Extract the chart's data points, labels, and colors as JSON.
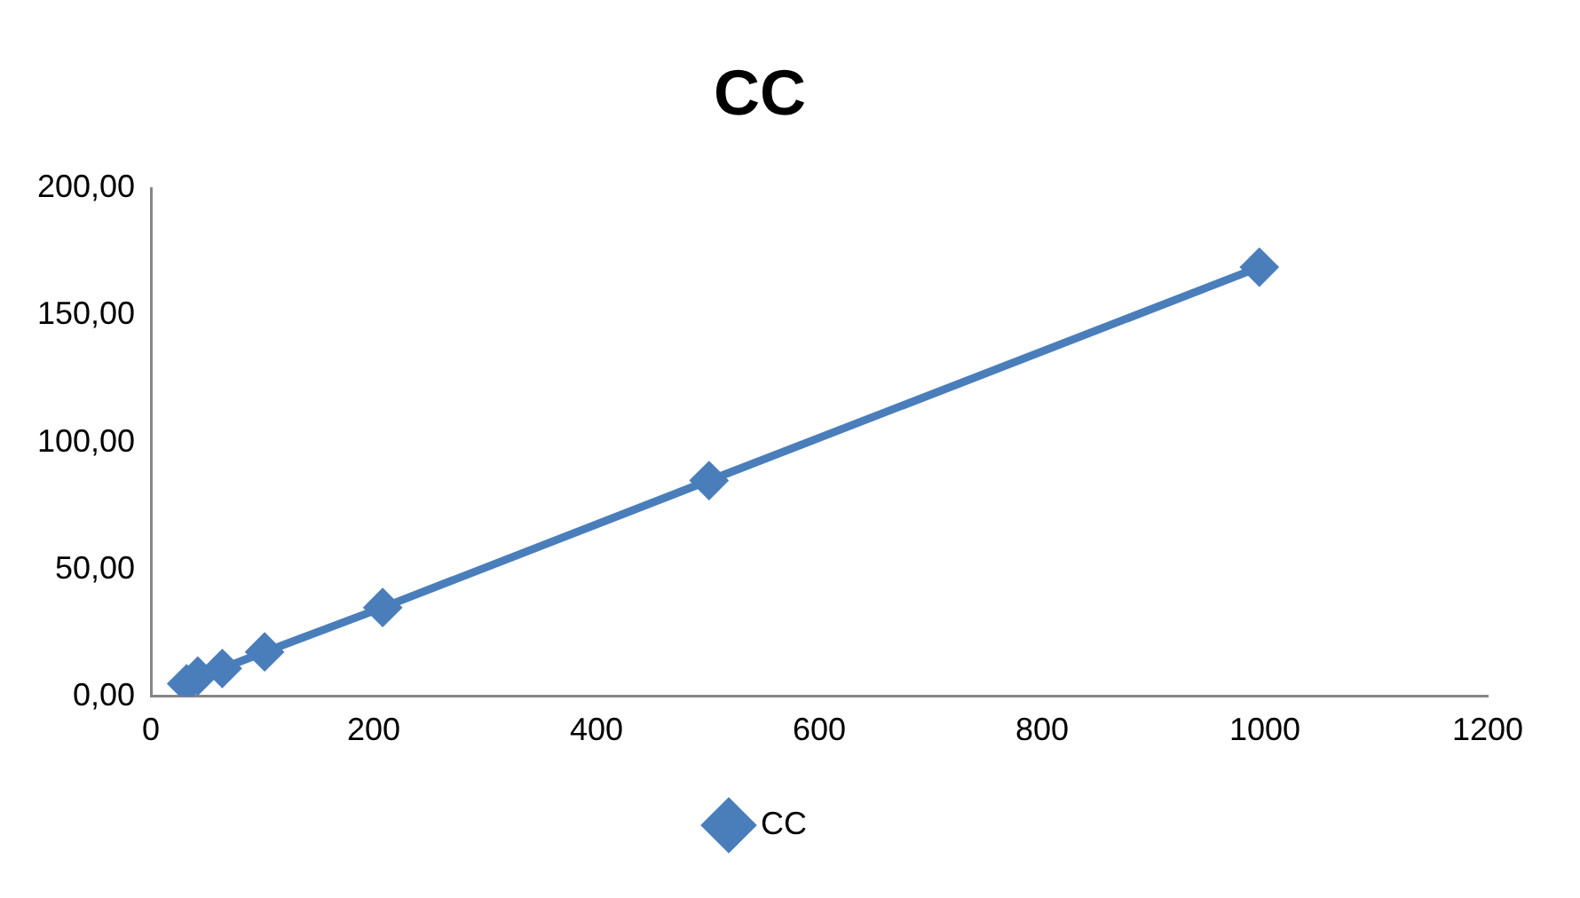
{
  "chart_data": {
    "type": "line",
    "title": "CC",
    "x": [
      32,
      42,
      64,
      102,
      208,
      501,
      995
    ],
    "series": [
      {
        "name": "CC",
        "color": "#4a7ebb",
        "values": [
          5,
          8,
          11,
          17.5,
          35,
          85,
          169
        ]
      }
    ],
    "xlim": [
      0,
      1200
    ],
    "xticks": [
      0,
      200,
      400,
      600,
      800,
      1000,
      1200
    ],
    "ylim": [
      0,
      200
    ],
    "yticks": [
      {
        "value": 0,
        "label": "0,00"
      },
      {
        "value": 50,
        "label": "50,00"
      },
      {
        "value": 100,
        "label": "100,00"
      },
      {
        "value": 150,
        "label": "150,00"
      },
      {
        "value": 200,
        "label": "200,00"
      }
    ],
    "grid": false,
    "legend": "bottom",
    "marker": "diamond",
    "line_style": "solid"
  }
}
